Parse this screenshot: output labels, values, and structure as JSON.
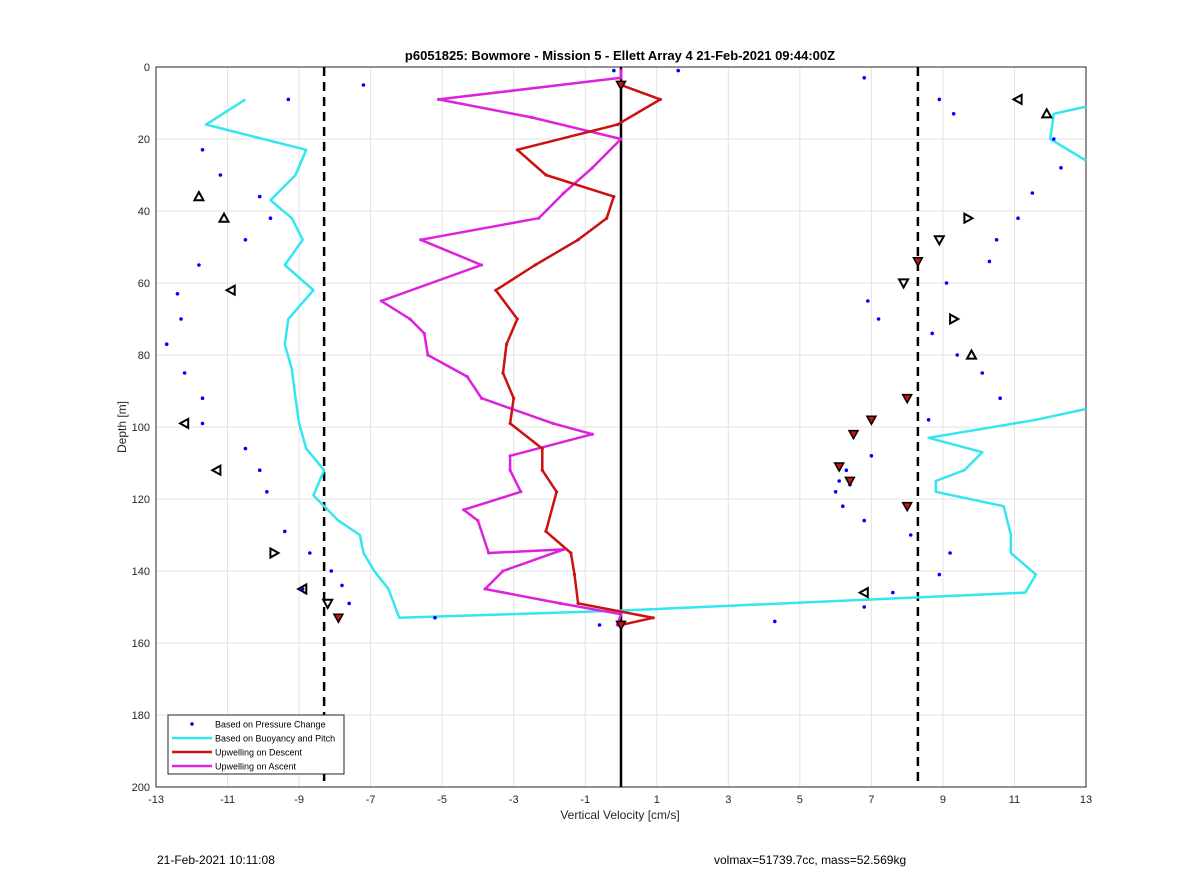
{
  "footer": {
    "timestamp": "21-Feb-2021 10:11:08",
    "volmax_mass": "volmax=51739.7cc, mass=52.569kg"
  },
  "chart_data": {
    "type": "line",
    "title": "p6051825: Bowmore - Mission 5 - Ellett Array 4 21-Feb-2021 09:44:00Z",
    "xlabel": "Vertical Velocity [cm/s]",
    "ylabel": "Depth [m]",
    "xlim": [
      -13,
      13
    ],
    "ylim": [
      0,
      200
    ],
    "y_reversed": true,
    "xticks": [
      -13,
      -11,
      -9,
      -7,
      -5,
      -3,
      -1,
      1,
      3,
      5,
      7,
      9,
      11,
      13
    ],
    "yticks": [
      0,
      20,
      40,
      60,
      80,
      100,
      120,
      140,
      160,
      180,
      200
    ],
    "grid": true,
    "legend_position": "bottom-left",
    "colors": {
      "pressure": "#0000ff",
      "buoyancy": "#33e6f0",
      "descent": "#cc1111",
      "ascent": "#dd22dd",
      "reference": "#000000"
    },
    "reference_lines": {
      "solid_x": 0,
      "dashed_x": [
        -8.3,
        8.3
      ]
    },
    "series": [
      {
        "name": "Based on Pressure Change",
        "style": "points",
        "points": [
          [
            -0.2,
            1
          ],
          [
            1.6,
            1
          ],
          [
            6.8,
            3
          ],
          [
            -7.2,
            5
          ],
          [
            -9.3,
            9
          ],
          [
            8.9,
            9
          ],
          [
            9.3,
            13
          ],
          [
            12.1,
            20
          ],
          [
            -11.7,
            23
          ],
          [
            12.3,
            28
          ],
          [
            -11.2,
            30
          ],
          [
            11.5,
            35
          ],
          [
            -10.1,
            36
          ],
          [
            11.1,
            42
          ],
          [
            -9.8,
            42
          ],
          [
            -10.5,
            48
          ],
          [
            10.5,
            48
          ],
          [
            -11.8,
            55
          ],
          [
            10.3,
            54
          ],
          [
            9.1,
            60
          ],
          [
            -12.4,
            63
          ],
          [
            6.9,
            65
          ],
          [
            7.2,
            70
          ],
          [
            -12.3,
            70
          ],
          [
            8.7,
            74
          ],
          [
            -12.7,
            77
          ],
          [
            9.4,
            80
          ],
          [
            -12.2,
            85
          ],
          [
            10.1,
            85
          ],
          [
            -11.7,
            92
          ],
          [
            10.6,
            92
          ],
          [
            8.6,
            98
          ],
          [
            -11.7,
            99
          ],
          [
            6.5,
            102
          ],
          [
            -10.5,
            106
          ],
          [
            7,
            108
          ],
          [
            -10.1,
            112
          ],
          [
            6.3,
            112
          ],
          [
            6.1,
            115
          ],
          [
            6.4,
            116
          ],
          [
            6,
            118
          ],
          [
            -9.9,
            118
          ],
          [
            6.2,
            122
          ],
          [
            6.8,
            126
          ],
          [
            -9.4,
            129
          ],
          [
            8.1,
            130
          ],
          [
            -8.7,
            135
          ],
          [
            9.2,
            135
          ],
          [
            -8.1,
            140
          ],
          [
            8.9,
            141
          ],
          [
            -7.8,
            144
          ],
          [
            -8.9,
            145
          ],
          [
            7.6,
            146
          ],
          [
            -7.6,
            149
          ],
          [
            6.8,
            150
          ],
          [
            -5.2,
            153
          ],
          [
            4.3,
            154
          ],
          [
            -0.6,
            155
          ],
          [
            0,
            155
          ]
        ]
      },
      {
        "name": "Based on Buoyancy and Pitch",
        "style": "line",
        "segments": [
          [
            [
              -10.5,
              9
            ],
            [
              -11.6,
              16
            ],
            [
              -8.8,
              23
            ],
            [
              -9.1,
              30
            ],
            [
              -9.8,
              37
            ],
            [
              -9.2,
              42
            ],
            [
              -8.9,
              48
            ],
            [
              -9.4,
              55
            ],
            [
              -8.6,
              62
            ],
            [
              -9.3,
              70
            ],
            [
              -9.4,
              77
            ],
            [
              -9.2,
              84
            ],
            [
              -9.1,
              92
            ],
            [
              -9,
              99
            ],
            [
              -8.8,
              106
            ],
            [
              -8.3,
              112
            ],
            [
              -8.6,
              119
            ],
            [
              -7.9,
              126
            ],
            [
              -7.3,
              130
            ],
            [
              -7.2,
              135
            ],
            [
              -6.9,
              140
            ],
            [
              -6.5,
              145
            ],
            [
              -6.2,
              153
            ],
            [
              0,
              151
            ],
            [
              11.3,
              146
            ],
            [
              11.6,
              141
            ],
            [
              10.9,
              135
            ],
            [
              10.9,
              130
            ],
            [
              10.8,
              126
            ],
            [
              10.7,
              122
            ],
            [
              8.8,
              118
            ],
            [
              8.8,
              115
            ],
            [
              9.6,
              112
            ],
            [
              10.1,
              107
            ],
            [
              8.6,
              103
            ],
            [
              11.6,
              98
            ],
            [
              13,
              95
            ]
          ],
          [
            [
              13,
              11
            ],
            [
              12.1,
              13
            ],
            [
              12,
              20
            ],
            [
              13,
              26
            ]
          ]
        ]
      },
      {
        "name": "Upwelling on Descent",
        "style": "line",
        "points": [
          [
            0,
            5
          ],
          [
            1.1,
            9
          ],
          [
            -0.1,
            16
          ],
          [
            -2.9,
            23
          ],
          [
            -2.1,
            30
          ],
          [
            -0.2,
            36
          ],
          [
            -0.4,
            42
          ],
          [
            -1.2,
            48
          ],
          [
            -2.4,
            55
          ],
          [
            -3.5,
            62
          ],
          [
            -2.9,
            70
          ],
          [
            -3.2,
            77
          ],
          [
            -3.3,
            85
          ],
          [
            -3,
            92
          ],
          [
            -3.1,
            99
          ],
          [
            -2.2,
            106
          ],
          [
            -2.2,
            112
          ],
          [
            -1.8,
            118
          ],
          [
            -2.1,
            129
          ],
          [
            -1.4,
            135
          ],
          [
            -1.3,
            141
          ],
          [
            -1.2,
            149
          ],
          [
            0.9,
            153
          ],
          [
            0,
            155
          ]
        ]
      },
      {
        "name": "Upwelling on Ascent",
        "style": "line",
        "points": [
          [
            0,
            1
          ],
          [
            0,
            3
          ],
          [
            -5.1,
            9
          ],
          [
            -2.5,
            14
          ],
          [
            0,
            20
          ],
          [
            -0.8,
            28
          ],
          [
            -1.6,
            35
          ],
          [
            -2.3,
            42
          ],
          [
            -5.6,
            48
          ],
          [
            -3.9,
            55
          ],
          [
            -6.7,
            65
          ],
          [
            -5.9,
            70
          ],
          [
            -5.5,
            74
          ],
          [
            -5.4,
            80
          ],
          [
            -4.3,
            86
          ],
          [
            -3.9,
            92
          ],
          [
            -1.9,
            99
          ],
          [
            -0.8,
            102
          ],
          [
            -3.1,
            108
          ],
          [
            -3.1,
            112
          ],
          [
            -2.8,
            118
          ],
          [
            -4.4,
            123
          ],
          [
            -4,
            126
          ],
          [
            -3.7,
            135
          ],
          [
            -1.6,
            134
          ],
          [
            -3.3,
            140
          ],
          [
            -3.8,
            145
          ],
          [
            -1.7,
            149
          ],
          [
            0,
            152
          ],
          [
            -0.1,
            155
          ]
        ]
      }
    ],
    "markers": {
      "descent_filled": [
        [
          0,
          5
        ],
        [
          8.3,
          54
        ],
        [
          8,
          92
        ],
        [
          7,
          98
        ],
        [
          6.5,
          102
        ],
        [
          6.1,
          111
        ],
        [
          6.4,
          115
        ],
        [
          8,
          122
        ],
        [
          -7.9,
          153
        ],
        [
          0,
          155
        ]
      ],
      "hollow": [
        [
          11.1,
          9,
          "left"
        ],
        [
          11.9,
          13,
          "up"
        ],
        [
          -11.8,
          36,
          "up"
        ],
        [
          -11.1,
          42,
          "up"
        ],
        [
          9.7,
          42,
          "right"
        ],
        [
          8.9,
          48,
          "down"
        ],
        [
          -10.9,
          62,
          "left"
        ],
        [
          7.9,
          60,
          "down"
        ],
        [
          9.3,
          70,
          "right"
        ],
        [
          9.8,
          80,
          "up"
        ],
        [
          -12.2,
          99,
          "left"
        ],
        [
          -11.3,
          112,
          "left"
        ],
        [
          -9.7,
          135,
          "right"
        ],
        [
          -8.9,
          145,
          "left"
        ],
        [
          -8.2,
          149,
          "down"
        ],
        [
          6.8,
          146,
          "left"
        ]
      ]
    }
  }
}
